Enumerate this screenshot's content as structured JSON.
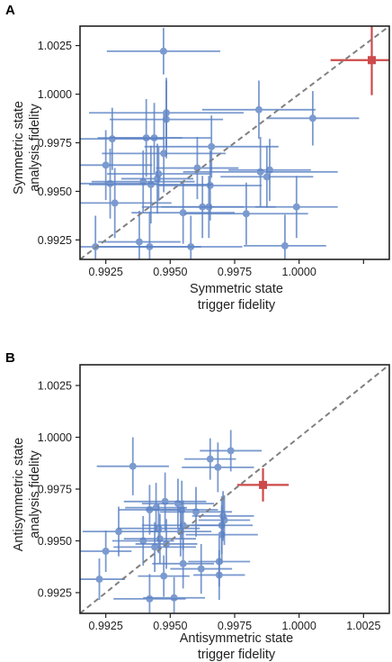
{
  "chart_data": [
    {
      "panel_label": "A",
      "type": "scatter",
      "xlabel": [
        "Symmetric state",
        "trigger fidelity"
      ],
      "ylabel": [
        "Symmetric state",
        "analysis fidelity"
      ],
      "xlim": [
        0.9915,
        1.0035
      ],
      "ylim": [
        0.9915,
        1.0035
      ],
      "xticks": [
        0.9925,
        0.995,
        0.9975,
        1.0,
        1.0025
      ],
      "yticks": [
        0.9925,
        0.995,
        0.9975,
        1.0,
        1.0025
      ],
      "xtick_labels": [
        "0.9925",
        "0.9950",
        "0.9975",
        "1.0000",
        ""
      ],
      "ytick_labels": [
        "0.9925",
        "0.9950",
        "0.9975",
        "1.0000",
        "1.0025"
      ],
      "diagonal": true,
      "colors": {
        "measurements": "#5b82c4",
        "average": "#cd4a4a",
        "diagonal": "#808080",
        "frame": "#222222"
      },
      "series": [
        {
          "marker": "circle",
          "points": [
            {
              "x": 0.99474,
              "y": 1.00221,
              "xerr": 0.0022,
              "yerr": 0.0012
            },
            {
              "x": 0.99844,
              "y": 0.9992,
              "xerr": 0.0022,
              "yerr": 0.0015
            },
            {
              "x": 1.00053,
              "y": 0.99876,
              "xerr": 0.0018,
              "yerr": 0.0014
            },
            {
              "x": 0.99485,
              "y": 0.99904,
              "xerr": 0.003,
              "yerr": 0.0018
            },
            {
              "x": 0.99485,
              "y": 0.9987,
              "xerr": 0.0022,
              "yerr": 0.002
            },
            {
              "x": 0.99275,
              "y": 0.9977,
              "xerr": 0.002,
              "yerr": 0.0016
            },
            {
              "x": 0.99407,
              "y": 0.99775,
              "xerr": 0.0014,
              "yerr": 0.002
            },
            {
              "x": 0.99438,
              "y": 0.99775,
              "xerr": 0.0022,
              "yerr": 0.0018
            },
            {
              "x": 0.9966,
              "y": 0.9973,
              "xerr": 0.0026,
              "yerr": 0.0016
            },
            {
              "x": 0.99475,
              "y": 0.99695,
              "xerr": 0.0024,
              "yerr": 0.002
            },
            {
              "x": 0.9925,
              "y": 0.99635,
              "xerr": 0.0018,
              "yerr": 0.0018
            },
            {
              "x": 0.99605,
              "y": 0.9962,
              "xerr": 0.0016,
              "yerr": 0.0016
            },
            {
              "x": 0.99455,
              "y": 0.9959,
              "xerr": 0.002,
              "yerr": 0.0014
            },
            {
              "x": 0.9945,
              "y": 0.99565,
              "xerr": 0.0014,
              "yerr": 0.0018
            },
            {
              "x": 0.99395,
              "y": 0.9955,
              "xerr": 0.002,
              "yerr": 0.0016
            },
            {
              "x": 0.99267,
              "y": 0.9954,
              "xerr": 0.0018,
              "yerr": 0.0018
            },
            {
              "x": 0.99425,
              "y": 0.99535,
              "xerr": 0.0024,
              "yerr": 0.002
            },
            {
              "x": 0.99655,
              "y": 0.9953,
              "xerr": 0.002,
              "yerr": 0.0018
            },
            {
              "x": 0.99886,
              "y": 0.9961,
              "xerr": 0.0016,
              "yerr": 0.0016
            },
            {
              "x": 0.9985,
              "y": 0.996,
              "xerr": 0.003,
              "yerr": 0.0018
            },
            {
              "x": 0.99875,
              "y": 0.99575,
              "xerr": 0.0018,
              "yerr": 0.0016
            },
            {
              "x": 0.99285,
              "y": 0.9944,
              "xerr": 0.0022,
              "yerr": 0.0018
            },
            {
              "x": 0.9965,
              "y": 0.9942,
              "xerr": 0.0026,
              "yerr": 0.0016
            },
            {
              "x": 0.99625,
              "y": 0.9942,
              "xerr": 0.0016,
              "yerr": 0.0016
            },
            {
              "x": 0.9999,
              "y": 0.9942,
              "xerr": 0.0016,
              "yerr": 0.0016
            },
            {
              "x": 0.99795,
              "y": 0.99385,
              "xerr": 0.0024,
              "yerr": 0.0016
            },
            {
              "x": 0.9955,
              "y": 0.9939,
              "xerr": 0.002,
              "yerr": 0.0016
            },
            {
              "x": 0.9938,
              "y": 0.9924,
              "xerr": 0.0016,
              "yerr": 0.0016
            },
            {
              "x": 0.9921,
              "y": 0.99215,
              "xerr": 0.0022,
              "yerr": 0.0016
            },
            {
              "x": 0.9942,
              "y": 0.99215,
              "xerr": 0.002,
              "yerr": 0.0018
            },
            {
              "x": 0.9958,
              "y": 0.99215,
              "xerr": 0.002,
              "yerr": 0.0016
            },
            {
              "x": 0.99945,
              "y": 0.9922,
              "xerr": 0.0016,
              "yerr": 0.0016
            }
          ]
        },
        {
          "marker": "square",
          "highlight": true,
          "points": [
            {
              "x": 1.00282,
              "y": 1.00175,
              "xerr": 0.0016,
              "yerr": 0.0018
            }
          ]
        }
      ]
    },
    {
      "panel_label": "B",
      "type": "scatter",
      "xlabel": [
        "Antisymmetric state",
        "trigger fidelity"
      ],
      "ylabel": [
        "Antisymmetric state",
        "analysis fidelity"
      ],
      "xlim": [
        0.9915,
        1.0035
      ],
      "ylim": [
        0.9915,
        1.0035
      ],
      "xticks": [
        0.9925,
        0.995,
        0.9975,
        1.0,
        1.0025
      ],
      "yticks": [
        0.9925,
        0.995,
        0.9975,
        1.0,
        1.0025
      ],
      "xtick_labels": [
        "0.9925",
        "0.9950",
        "0.9975",
        "1.0000",
        "1.0025"
      ],
      "ytick_labels": [
        "0.9925",
        "0.9950",
        "0.9975",
        "1.0000",
        "1.0025"
      ],
      "diagonal": true,
      "colors": {
        "measurements": "#5b82c4",
        "average": "#cd4a4a",
        "diagonal": "#808080",
        "frame": "#222222"
      },
      "series": [
        {
          "marker": "circle",
          "points": [
            {
              "x": 0.99355,
              "y": 0.9986,
              "xerr": 0.0014,
              "yerr": 0.0014
            },
            {
              "x": 0.99735,
              "y": 0.99935,
              "xerr": 0.0012,
              "yerr": 0.001
            },
            {
              "x": 0.99655,
              "y": 0.99895,
              "xerr": 0.001,
              "yerr": 0.001
            },
            {
              "x": 0.99685,
              "y": 0.99855,
              "xerr": 0.0014,
              "yerr": 0.0012
            },
            {
              "x": 0.9948,
              "y": 0.9969,
              "xerr": 0.0016,
              "yerr": 0.0014
            },
            {
              "x": 0.9953,
              "y": 0.9968,
              "xerr": 0.0014,
              "yerr": 0.0012
            },
            {
              "x": 0.99445,
              "y": 0.9966,
              "xerr": 0.0012,
              "yerr": 0.0012
            },
            {
              "x": 0.99545,
              "y": 0.9965,
              "xerr": 0.0014,
              "yerr": 0.0014
            },
            {
              "x": 0.9942,
              "y": 0.9965,
              "xerr": 0.0012,
              "yerr": 0.0012
            },
            {
              "x": 0.996,
              "y": 0.9964,
              "xerr": 0.0014,
              "yerr": 0.0012
            },
            {
              "x": 0.99705,
              "y": 0.9962,
              "xerr": 0.0012,
              "yerr": 0.0012
            },
            {
              "x": 0.9971,
              "y": 0.996,
              "xerr": 0.001,
              "yerr": 0.0012
            },
            {
              "x": 0.997,
              "y": 0.99575,
              "xerr": 0.0012,
              "yerr": 0.0014
            },
            {
              "x": 0.9955,
              "y": 0.99575,
              "xerr": 0.0016,
              "yerr": 0.0012
            },
            {
              "x": 0.99455,
              "y": 0.9956,
              "xerr": 0.0016,
              "yerr": 0.0012
            },
            {
              "x": 0.993,
              "y": 0.99545,
              "xerr": 0.0014,
              "yerr": 0.0012
            },
            {
              "x": 0.9954,
              "y": 0.99545,
              "xerr": 0.0012,
              "yerr": 0.0012
            },
            {
              "x": 0.997,
              "y": 0.9953,
              "xerr": 0.0014,
              "yerr": 0.0014
            },
            {
              "x": 0.9946,
              "y": 0.9951,
              "xerr": 0.0014,
              "yerr": 0.0012
            },
            {
              "x": 0.99395,
              "y": 0.995,
              "xerr": 0.0012,
              "yerr": 0.0012
            },
            {
              "x": 0.99485,
              "y": 0.99485,
              "xerr": 0.0012,
              "yerr": 0.0012
            },
            {
              "x": 0.9944,
              "y": 0.9947,
              "xerr": 0.0016,
              "yerr": 0.0012
            },
            {
              "x": 0.9925,
              "y": 0.9945,
              "xerr": 0.001,
              "yerr": 0.001
            },
            {
              "x": 0.9969,
              "y": 0.994,
              "xerr": 0.0012,
              "yerr": 0.0012
            },
            {
              "x": 0.9955,
              "y": 0.9939,
              "xerr": 0.0012,
              "yerr": 0.0012
            },
            {
              "x": 0.9962,
              "y": 0.99365,
              "xerr": 0.0012,
              "yerr": 0.0012
            },
            {
              "x": 0.99475,
              "y": 0.9933,
              "xerr": 0.001,
              "yerr": 0.001
            },
            {
              "x": 0.9969,
              "y": 0.99335,
              "xerr": 0.001,
              "yerr": 0.0012
            },
            {
              "x": 0.99225,
              "y": 0.99315,
              "xerr": 0.001,
              "yerr": 0.001
            },
            {
              "x": 0.9942,
              "y": 0.9922,
              "xerr": 0.0014,
              "yerr": 0.0012
            },
            {
              "x": 0.99515,
              "y": 0.99225,
              "xerr": 0.0012,
              "yerr": 0.001
            }
          ]
        },
        {
          "marker": "square",
          "highlight": true,
          "points": [
            {
              "x": 0.9986,
              "y": 0.9977,
              "xerr": 0.001,
              "yerr": 0.0008
            }
          ]
        }
      ]
    }
  ]
}
